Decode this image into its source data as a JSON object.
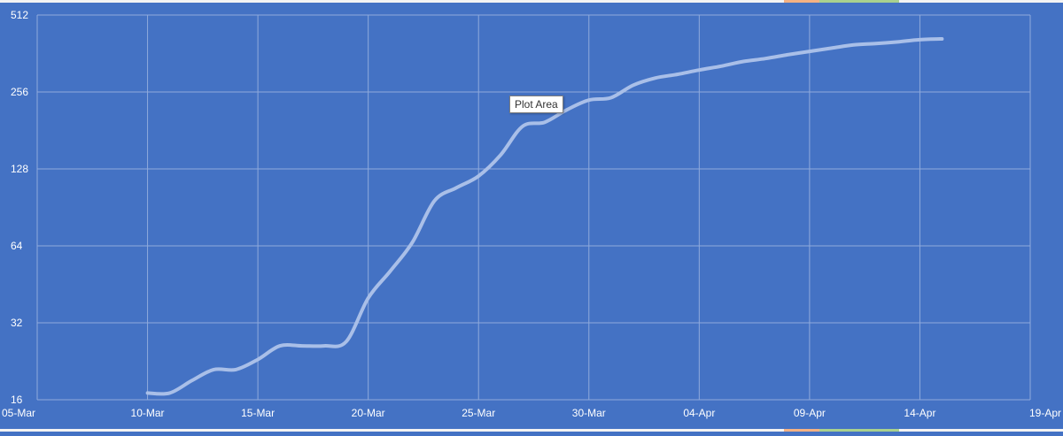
{
  "tooltip": {
    "label": "Plot Area"
  },
  "colors": {
    "plot_background": "#4472C4",
    "gridline": "#8FAADC",
    "line": "#A9BFE8",
    "text": "#ffffff",
    "top_strip_red": "#f4b183",
    "top_strip_green": "#a9d18e"
  },
  "chart_data": {
    "type": "line",
    "title": "",
    "xlabel": "",
    "ylabel": "",
    "yscale": "log2",
    "ylim": [
      16,
      512
    ],
    "xlim": [
      "2020-03-05",
      "2020-04-19"
    ],
    "grid": true,
    "legend": "none",
    "x_tick_labels": [
      "05-Mar",
      "10-Mar",
      "15-Mar",
      "20-Mar",
      "25-Mar",
      "30-Mar",
      "04-Apr",
      "09-Apr",
      "14-Apr",
      "19-Apr"
    ],
    "x_ticks": [
      "2020-03-05",
      "2020-03-10",
      "2020-03-15",
      "2020-03-20",
      "2020-03-25",
      "2020-03-30",
      "2020-04-04",
      "2020-04-09",
      "2020-04-14",
      "2020-04-19"
    ],
    "y_tick_labels": [
      "16",
      "32",
      "64",
      "128",
      "256",
      "512"
    ],
    "y_ticks": [
      16,
      32,
      64,
      128,
      256,
      512
    ],
    "series": [
      {
        "x": [
          "2020-03-10",
          "2020-03-11",
          "2020-03-12",
          "2020-03-13",
          "2020-03-14",
          "2020-03-15",
          "2020-03-16",
          "2020-03-17",
          "2020-03-18",
          "2020-03-19",
          "2020-03-20",
          "2020-03-21",
          "2020-03-22",
          "2020-03-23",
          "2020-03-24",
          "2020-03-25",
          "2020-03-26",
          "2020-03-27",
          "2020-03-28",
          "2020-03-29",
          "2020-03-30",
          "2020-03-31",
          "2020-04-01",
          "2020-04-02",
          "2020-04-03",
          "2020-04-04",
          "2020-04-05",
          "2020-04-06",
          "2020-04-07",
          "2020-04-08",
          "2020-04-09",
          "2020-04-10",
          "2020-04-11",
          "2020-04-12",
          "2020-04-13",
          "2020-04-14",
          "2020-04-15"
        ],
        "values": [
          17,
          17,
          19,
          21,
          21,
          23,
          26,
          26,
          26,
          27,
          40,
          51,
          66,
          96,
          108,
          120,
          145,
          188,
          195,
          218,
          238,
          243,
          272,
          290,
          300,
          312,
          323,
          337,
          346,
          358,
          369,
          380,
          391,
          396,
          402,
          410,
          413
        ]
      }
    ]
  }
}
